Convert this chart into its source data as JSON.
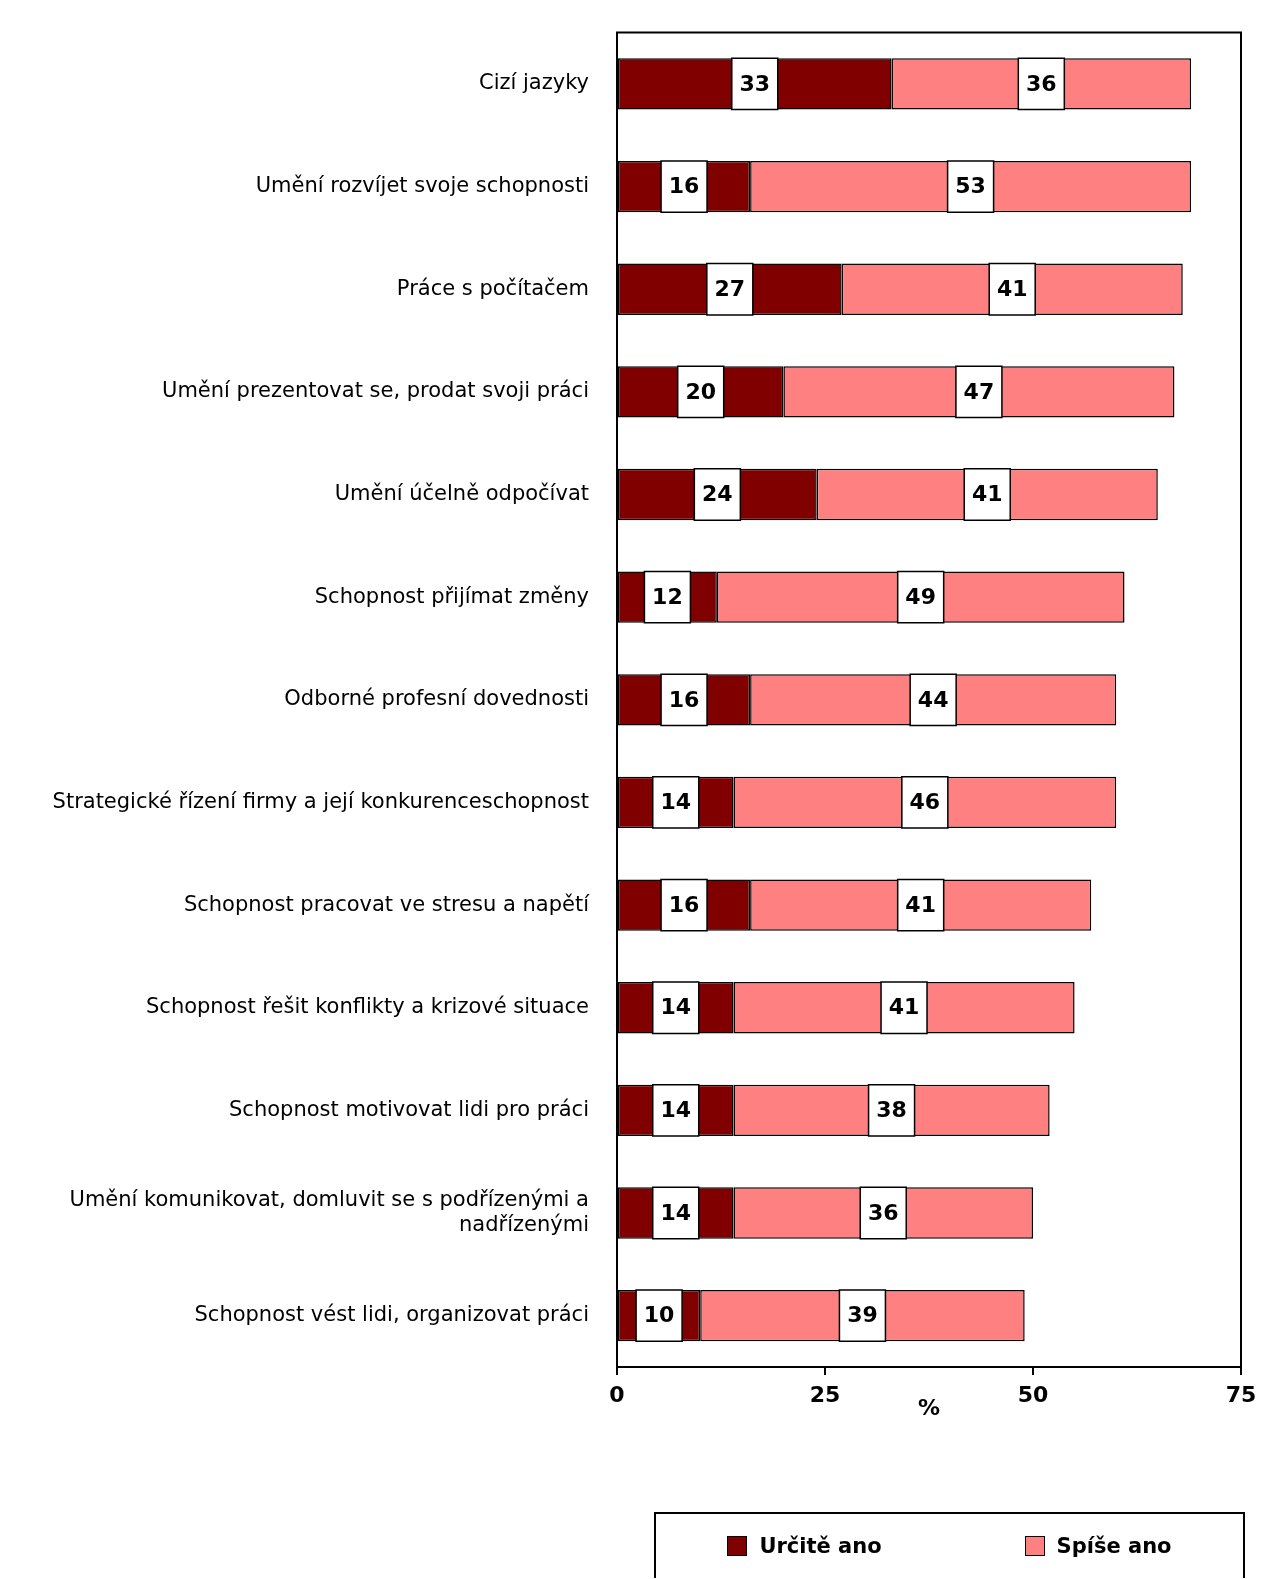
{
  "chart_data": {
    "type": "bar",
    "orientation": "horizontal",
    "stacked": true,
    "xlabel": "%",
    "xlim": [
      0,
      75
    ],
    "xticks": [
      0,
      25,
      50,
      75
    ],
    "grid": false,
    "legend": "bottom right",
    "data_labels": true,
    "categories": [
      "Cizí jazyky",
      "Umění rozvíjet svoje schopnosti",
      "Práce s počítačem",
      "Umění prezentovat se, prodat svoji práci",
      "Umění účelně odpočívat",
      "Schopnost přijímat změny",
      "Odborné profesní dovednosti",
      "Strategické řízení firmy a její konkurenceschopnost",
      "Schopnost pracovat ve stresu a napětí",
      "Schopnost řešit konflikty a krizové situace",
      "Schopnost motivovat lidi pro práci",
      "Umění komunikovat, domluvit se s podřízenými a nadřízenými",
      "Schopnost vést lidi, organizovat práci"
    ],
    "series": [
      {
        "name": "Určitě ano",
        "color": "#800000",
        "values": [
          33,
          16,
          27,
          20,
          24,
          12,
          16,
          14,
          16,
          14,
          14,
          14,
          10
        ]
      },
      {
        "name": "Spíše ano",
        "color": "#ff8080",
        "values": [
          36,
          53,
          41,
          47,
          41,
          49,
          44,
          46,
          41,
          41,
          38,
          36,
          39
        ]
      }
    ]
  }
}
